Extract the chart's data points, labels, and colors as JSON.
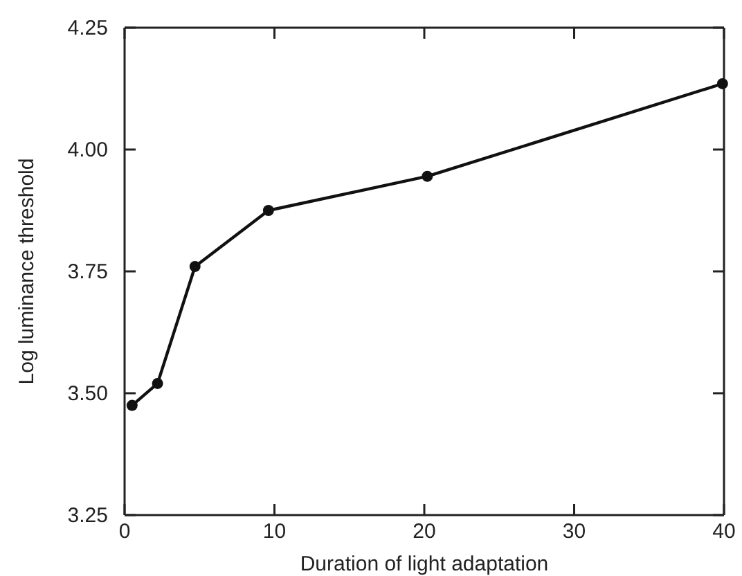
{
  "chart_data": {
    "type": "line",
    "xlabel": "Duration of light adaptation",
    "ylabel": "Log luminance threshold",
    "x": [
      0.5,
      2.2,
      4.7,
      9.6,
      20.2,
      39.9
    ],
    "series": [
      {
        "color": "#111111",
        "values": [
          3.475,
          3.52,
          3.76,
          3.875,
          3.945,
          4.135
        ]
      }
    ],
    "xlim": [
      0,
      40
    ],
    "xticks": [
      0,
      10,
      20,
      30,
      40
    ],
    "ylim": [
      3.25,
      4.25
    ],
    "yticks": [
      {
        "value": 3.25,
        "label": "3.25"
      },
      {
        "value": 3.5,
        "label": "3.50"
      },
      {
        "value": 3.75,
        "label": "3.75"
      },
      {
        "value": 4,
        "label": "4.00"
      },
      {
        "value": 4.25,
        "label": "4.25"
      }
    ],
    "marker": "circle",
    "line_style": "solid",
    "grid": false
  }
}
